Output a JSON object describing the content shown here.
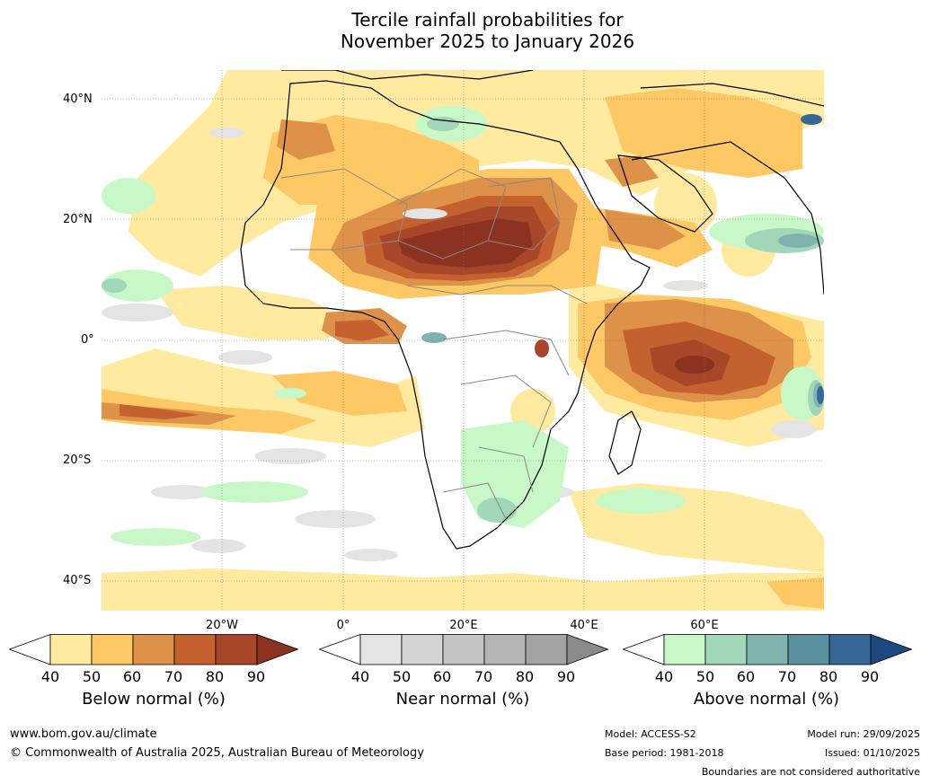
{
  "title": {
    "line1": "Tercile rainfall probabilities for",
    "line2": "November 2025 to January 2026"
  },
  "map": {
    "region": "Africa and surrounding oceans",
    "lat_labels": [
      "40°N",
      "20°N",
      "0°",
      "20°S",
      "40°S"
    ],
    "lon_labels": [
      "20°W",
      "0°",
      "20°E",
      "40°E",
      "60°E"
    ]
  },
  "colorbars": [
    {
      "name": "below-normal",
      "title": "Below normal (%)",
      "ticks": [
        "40",
        "50",
        "60",
        "70",
        "80",
        "90"
      ],
      "colors": [
        "#ffffff",
        "#ffeaa0",
        "#fec865",
        "#de9148",
        "#c4612f",
        "#a8462a",
        "#8c3220"
      ]
    },
    {
      "name": "near-normal",
      "title": "Near normal (%)",
      "ticks": [
        "40",
        "50",
        "60",
        "70",
        "80",
        "90"
      ],
      "colors": [
        "#ffffff",
        "#e4e4e4",
        "#d4d4d4",
        "#c4c4c4",
        "#b4b4b4",
        "#a3a3a3",
        "#8a8a8a"
      ]
    },
    {
      "name": "above-normal",
      "title": "Above normal (%)",
      "ticks": [
        "40",
        "50",
        "60",
        "70",
        "80",
        "90"
      ],
      "colors": [
        "#ffffff",
        "#c8f7c8",
        "#a2d6b8",
        "#80b3ad",
        "#5b90a0",
        "#356897",
        "#1b4a82"
      ]
    }
  ],
  "footer": {
    "website": "www.bom.gov.au/climate",
    "copyright": "© Commonwealth of Australia 2025, Australian Bureau of Meteorology",
    "model": "Model: ACCESS-S2",
    "base_period": "Base period: 1981-2018",
    "model_run": "Model run: 29/09/2025",
    "issued": "Issued: 01/10/2025",
    "disclaimer": "Boundaries are not considered authoritative"
  }
}
